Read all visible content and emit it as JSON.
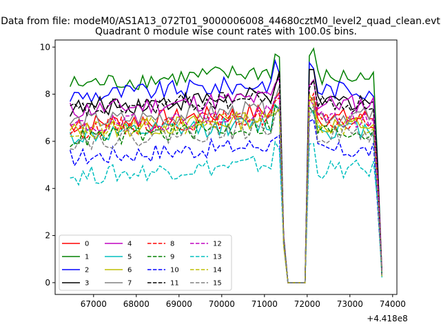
{
  "chart_data": {
    "type": "line",
    "suptitle": "Data from file: modeM0/AS1A13_072T01_9000006008_44680cztM0_level2_quad_clean.evt",
    "title": "Quadrant 0 module wise count rates with 100.0s bins.",
    "xlabel": "",
    "ylabel": "",
    "x_offset_label": "+4.418e8",
    "x_ticks": [
      67000,
      68000,
      69000,
      70000,
      71000,
      72000,
      73000,
      74000
    ],
    "y_ticks": [
      0,
      2,
      4,
      6,
      8,
      10
    ],
    "xlim": [
      66100,
      74100
    ],
    "ylim": [
      -0.5,
      10.3
    ],
    "grid": false,
    "legend_position": "lower-left",
    "series": [
      {
        "name": "0",
        "color": "#ff0000",
        "dash": "solid",
        "level": 6.7
      },
      {
        "name": "1",
        "color": "#008000",
        "dash": "solid",
        "level": 8.4
      },
      {
        "name": "2",
        "color": "#0000ff",
        "dash": "solid",
        "level": 7.9
      },
      {
        "name": "3",
        "color": "#000000",
        "dash": "solid",
        "level": 7.4
      },
      {
        "name": "4",
        "color": "#bf00bf",
        "dash": "solid",
        "level": 7.3
      },
      {
        "name": "5",
        "color": "#00bfbf",
        "dash": "solid",
        "level": 6.2
      },
      {
        "name": "6",
        "color": "#bfbf00",
        "dash": "solid",
        "level": 6.4
      },
      {
        "name": "7",
        "color": "#808080",
        "dash": "solid",
        "level": 6.8
      },
      {
        "name": "8",
        "color": "#ff0000",
        "dash": "dashed",
        "level": 6.5
      },
      {
        "name": "9",
        "color": "#008000",
        "dash": "dashed",
        "level": 6.1
      },
      {
        "name": "10",
        "color": "#0000ff",
        "dash": "dashed",
        "level": 5.3
      },
      {
        "name": "11",
        "color": "#000000",
        "dash": "dashed",
        "level": 7.3
      },
      {
        "name": "12",
        "color": "#bf00bf",
        "dash": "dashed",
        "level": 6.6
      },
      {
        "name": "13",
        "color": "#00bfbf",
        "dash": "dashed",
        "level": 4.5
      },
      {
        "name": "14",
        "color": "#bfbf00",
        "dash": "dashed",
        "level": 6.4
      },
      {
        "name": "15",
        "color": "#808080",
        "dash": "dashed",
        "level": 6.0
      }
    ],
    "time": {
      "start": 66450,
      "step": 100,
      "gap_from": 71550,
      "gap_to": 71950,
      "end": 73750
    },
    "gap_value": 0.0
  }
}
